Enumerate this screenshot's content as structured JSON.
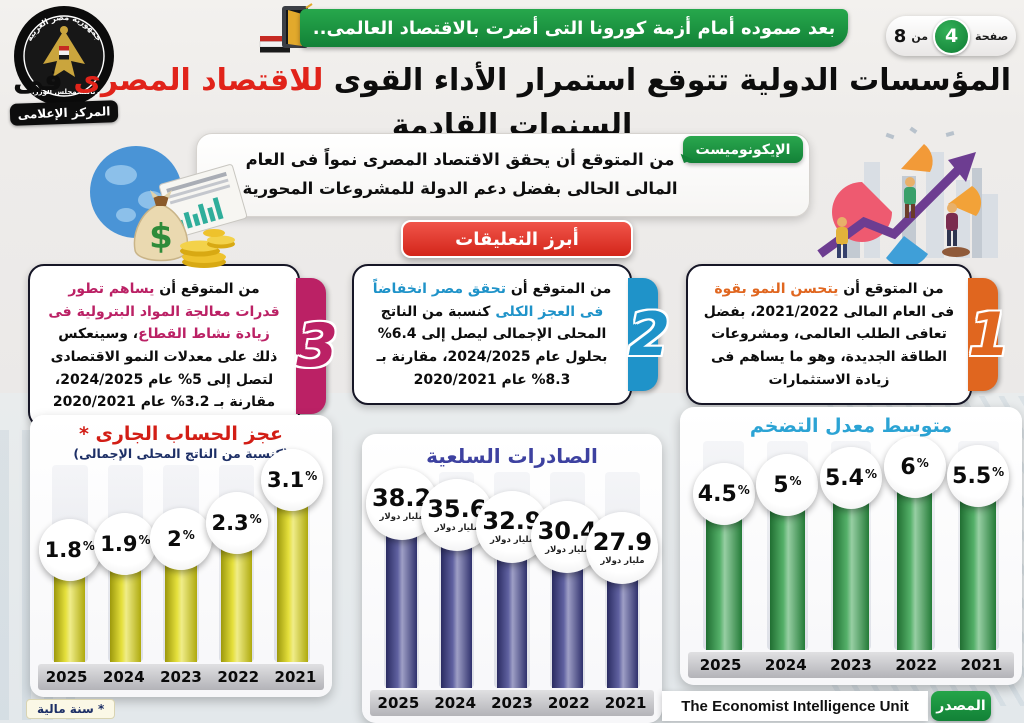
{
  "header": {
    "emblem": {
      "top_text": "جمهورية مصر العربية",
      "bottom_text": "رئاسة مجلس الوزراء",
      "ribbon": "المركز الإعلامى"
    },
    "banner_text": "بعد صموده أمام أزمة كورونا التى أضرت بالاقتصاد العالمى..",
    "banner_color": "#1e9e44",
    "page_indicator": {
      "page_label": "صفحة",
      "page_number": "4",
      "of_label": "من",
      "total": "8"
    }
  },
  "title": {
    "part1": "المؤسسات الدولية تتوقع استمرار الأداء القوى ",
    "highlight": "للاقتصاد المصرى",
    "part2": " فى السنوات القادمة",
    "highlight_color": "#e1231a"
  },
  "intro": {
    "source_label": "الإيكونوميست",
    "text": "من المتوقع أن يحقق الاقتصاد المصرى نمواً فى العام المالى الحالى بفضل دعم الدولة للمشروعات المحورية"
  },
  "comments_header": "أبرز التعليقات",
  "comments_header_color": "#d3251a",
  "comments": [
    {
      "number": "1",
      "accent": "#e0661f",
      "pre": "من المتوقع أن ",
      "highlight": "يتحسن النمو بقوة",
      "post": " فى العام المالى 2021/2022، بفضل تعافى الطلب العالمى، ومشروعات الطاقة الجديدة، وهو ما يساهم فى زيادة الاستثمارات"
    },
    {
      "number": "2",
      "accent": "#1f93c9",
      "pre": "من المتوقع أن ",
      "highlight": "تحقق مصر انخفاضاً فى العجز الكلى",
      "post": " كنسبة من الناتج المحلى الإجمالى ليصل إلى 6.4% بحلول عام 2024/2025، مقارنة بـ 8.3% عام 2020/2021"
    },
    {
      "number": "3",
      "accent": "#bb2165",
      "pre": "من المتوقع أن ",
      "highlight": "يساهم تطور قدرات معالجة المواد البترولية فى زيادة نشاط القطاع",
      "post": "، وسينعكس ذلك على معدلات النمو الاقتصادى لتصل إلى 5% عام 2024/2025، مقارنة بـ 3.2% عام 2020/2021"
    }
  ],
  "chart_data": [
    {
      "type": "bar",
      "title": "عجز الحساب الجارى *",
      "subtitle": "(كنسبة من الناتج المحلى الإجمالى)",
      "categories": [
        "2025",
        "2024",
        "2023",
        "2022",
        "2021"
      ],
      "values": [
        1.8,
        1.9,
        2,
        2.3,
        3.1
      ],
      "value_labels": [
        "1.8%",
        "1.9%",
        "2%",
        "2.3%",
        "3.1%"
      ],
      "bar_color": "#e0da12",
      "title_color": "#d21d15",
      "footnote": "* سنة مالية"
    },
    {
      "type": "bar",
      "title": "الصادرات السلعية",
      "categories": [
        "2025",
        "2024",
        "2023",
        "2022",
        "2021"
      ],
      "values": [
        38.2,
        35.6,
        32.9,
        30.4,
        27.9
      ],
      "value_labels": [
        "38.2",
        "35.6",
        "32.9",
        "30.4",
        "27.9"
      ],
      "unit_label": "مليار دولار",
      "bar_color": "#3d3f8c",
      "title_color": "#3d41a0"
    },
    {
      "type": "bar",
      "title": "متوسط معدل التضخم",
      "categories": [
        "2025",
        "2024",
        "2023",
        "2022",
        "2021"
      ],
      "values": [
        4.5,
        5,
        5.4,
        6,
        5.5
      ],
      "value_labels": [
        "4.5%",
        "5%",
        "5.4%",
        "6%",
        "5.5%"
      ],
      "bar_color": "#2e9e47",
      "title_color": "#2ba3d4"
    }
  ],
  "source": {
    "label": "المصدر",
    "text": "The Economist Intelligence Unit"
  }
}
